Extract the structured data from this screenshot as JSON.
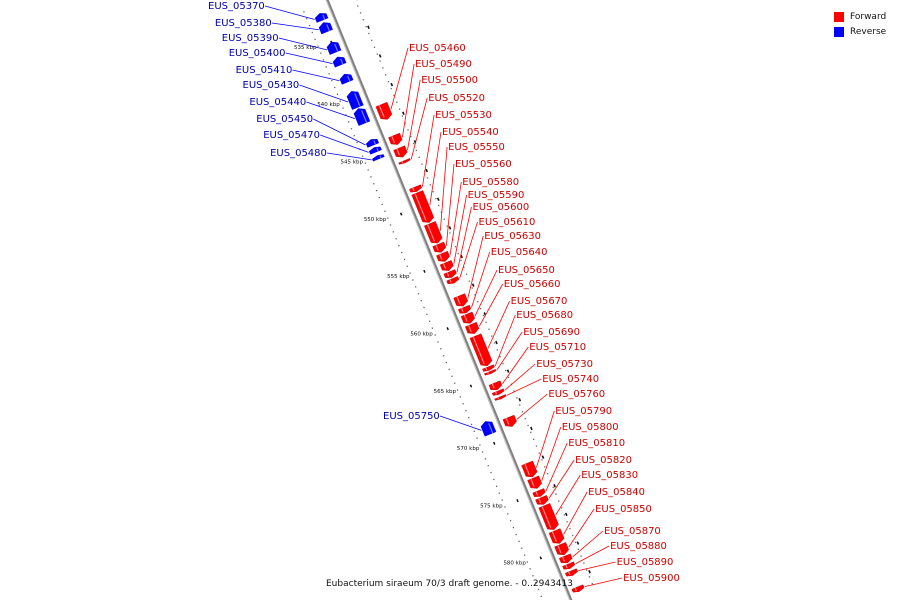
{
  "legend": {
    "forward_label": "Forward",
    "reverse_label": "Reverse",
    "forward_color": "#ff0000",
    "reverse_color": "#0000ff"
  },
  "caption": "Eubacterium siraeum 70/3 draft genome. - 0..2943413",
  "colors": {
    "forward": "#ff0000",
    "reverse": "#0000ff",
    "backbone": "#808080",
    "tick": "#111111",
    "reverse_label_text": "#0000aa",
    "forward_label_text": "#cc0000"
  },
  "scale": {
    "unit": "kbp",
    "start_kbp": 532,
    "end_kbp": 584,
    "ticks": [
      {
        "value": 535,
        "label": "535 kbp"
      },
      {
        "value": 540,
        "label": "540 kbp"
      },
      {
        "value": 545,
        "label": "545 kbp"
      },
      {
        "value": 550,
        "label": "550 kbp"
      },
      {
        "value": 555,
        "label": "555 kbp"
      },
      {
        "value": 560,
        "label": "560 kbp"
      },
      {
        "value": 565,
        "label": "565 kbp"
      },
      {
        "value": 570,
        "label": "570 kbp"
      },
      {
        "value": 575,
        "label": "575 kbp"
      },
      {
        "value": 580,
        "label": "580 kbp"
      }
    ]
  },
  "reverse_genes": [
    {
      "label": "EUS_05370",
      "start": 532.6,
      "end": 533.2
    },
    {
      "label": "EUS_05380",
      "start": 533.4,
      "end": 534.2
    },
    {
      "label": "EUS_05390",
      "start": 535.1,
      "end": 536.0
    },
    {
      "label": "EUS_05400",
      "start": 536.4,
      "end": 537.1
    },
    {
      "label": "EUS_05410",
      "start": 537.9,
      "end": 538.6
    },
    {
      "label": "EUS_05430",
      "start": 539.4,
      "end": 540.8
    },
    {
      "label": "EUS_05440",
      "start": 540.9,
      "end": 542.2
    },
    {
      "label": "EUS_05450",
      "start": 543.6,
      "end": 544.1
    },
    {
      "label": "EUS_05470",
      "start": 544.3,
      "end": 544.7
    },
    {
      "label": "EUS_05480",
      "start": 545.0,
      "end": 545.3
    },
    {
      "label": "EUS_05750",
      "start": 568.2,
      "end": 569.3
    }
  ],
  "forward_genes": [
    {
      "label": "EUS_05460",
      "start": 541.3,
      "end": 542.6
    },
    {
      "label": "EUS_05490",
      "start": 544.0,
      "end": 544.8
    },
    {
      "label": "EUS_05500",
      "start": 545.1,
      "end": 545.9
    },
    {
      "label": "EUS_05520",
      "start": 546.2,
      "end": 546.4
    },
    {
      "label": "EUS_05530",
      "start": 548.5,
      "end": 548.9
    },
    {
      "label": "EUS_05540",
      "start": 549.0,
      "end": 551.6
    },
    {
      "label": "EUS_05550",
      "start": 551.7,
      "end": 553.4
    },
    {
      "label": "EUS_05560",
      "start": 553.5,
      "end": 554.2
    },
    {
      "label": "EUS_05580",
      "start": 554.3,
      "end": 555.0
    },
    {
      "label": "EUS_05590",
      "start": 555.1,
      "end": 555.8
    },
    {
      "label": "EUS_05600",
      "start": 555.9,
      "end": 556.4
    },
    {
      "label": "EUS_05610",
      "start": 556.5,
      "end": 556.9
    },
    {
      "label": "EUS_05630",
      "start": 558.0,
      "end": 558.9
    },
    {
      "label": "EUS_05640",
      "start": 559.0,
      "end": 559.5
    },
    {
      "label": "EUS_05650",
      "start": 559.6,
      "end": 560.4
    },
    {
      "label": "EUS_05660",
      "start": 560.5,
      "end": 561.3
    },
    {
      "label": "EUS_05670",
      "start": 561.5,
      "end": 564.1
    },
    {
      "label": "EUS_05680",
      "start": 564.2,
      "end": 564.5
    },
    {
      "label": "EUS_05690",
      "start": 564.6,
      "end": 564.8
    },
    {
      "label": "EUS_05710",
      "start": 565.6,
      "end": 566.2
    },
    {
      "label": "EUS_05730",
      "start": 566.3,
      "end": 566.6
    },
    {
      "label": "EUS_05740",
      "start": 566.8,
      "end": 567.0
    },
    {
      "label": "EUS_05760",
      "start": 568.6,
      "end": 569.4
    },
    {
      "label": "EUS_05790",
      "start": 572.6,
      "end": 573.8
    },
    {
      "label": "EUS_05800",
      "start": 573.9,
      "end": 574.8
    },
    {
      "label": "EUS_05810",
      "start": 575.0,
      "end": 575.5
    },
    {
      "label": "EUS_05820",
      "start": 575.6,
      "end": 576.2
    },
    {
      "label": "EUS_05830",
      "start": 576.3,
      "end": 578.4
    },
    {
      "label": "EUS_05840",
      "start": 578.5,
      "end": 579.6
    },
    {
      "label": "EUS_05850",
      "start": 579.7,
      "end": 580.6
    },
    {
      "label": "EUS_05870",
      "start": 580.7,
      "end": 581.3
    },
    {
      "label": "EUS_05880",
      "start": 581.4,
      "end": 581.8
    },
    {
      "label": "EUS_05890",
      "start": 582.0,
      "end": 582.4
    },
    {
      "label": "EUS_05900",
      "start": 583.4,
      "end": 583.8
    }
  ]
}
